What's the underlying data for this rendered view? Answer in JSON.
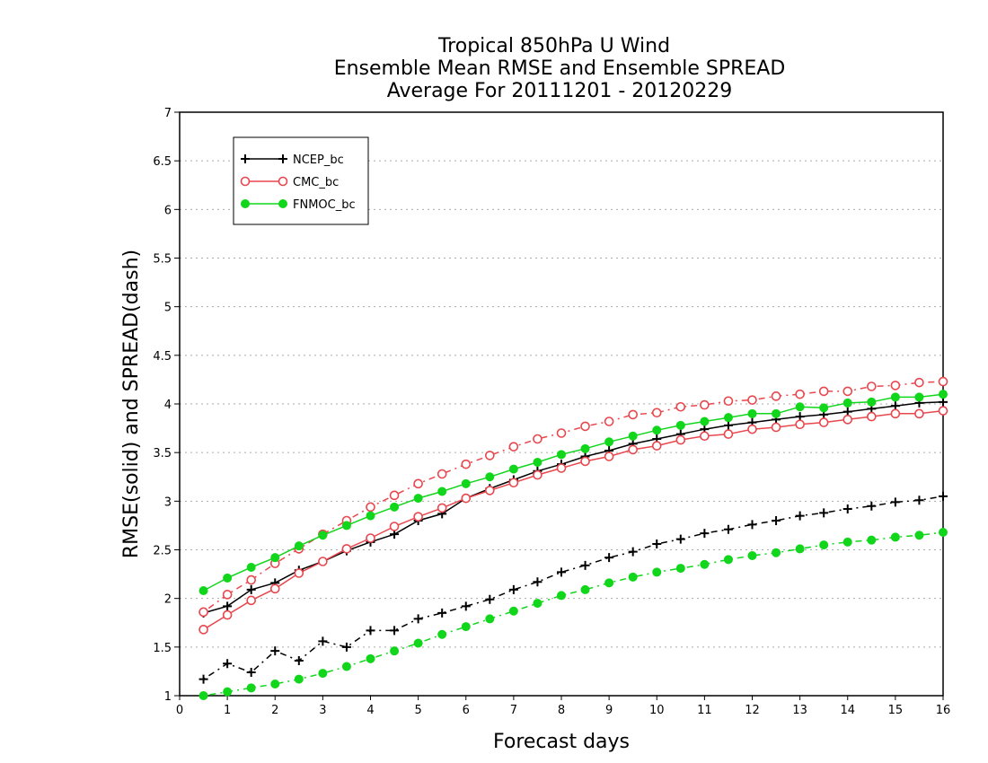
{
  "chart_data": {
    "type": "line",
    "title_lines": [
      "Tropical 850hPa U Wind",
      "Ensemble Mean RMSE and Ensemble SPREAD",
      "Average For 20111201 - 20120229"
    ],
    "xlabel": "Forecast days",
    "ylabel": "RMSE(solid) and SPREAD(dash)",
    "xlim": [
      0,
      16
    ],
    "ylim": [
      1,
      7
    ],
    "x_ticks": [
      "0",
      "1",
      "2",
      "3",
      "4",
      "5",
      "6",
      "7",
      "8",
      "9",
      "10",
      "11",
      "12",
      "13",
      "14",
      "15",
      "16"
    ],
    "y_ticks": [
      "1",
      "1.5",
      "2",
      "2.5",
      "3",
      "3.5",
      "4",
      "4.5",
      "5",
      "5.5",
      "6",
      "6.5",
      "7"
    ],
    "grid": "horizontal dotted",
    "legend_position": "top-left",
    "x": [
      0.5,
      1,
      1.5,
      2,
      2.5,
      3,
      3.5,
      4,
      4.5,
      5,
      5.5,
      6,
      6.5,
      7,
      7.5,
      8,
      8.5,
      9,
      9.5,
      10,
      10.5,
      11,
      11.5,
      12,
      12.5,
      13,
      13.5,
      14,
      14.5,
      15,
      15.5,
      16
    ],
    "series": [
      {
        "name": "NCEP_bc",
        "color": "#000000",
        "marker": "plus",
        "rmse": [
          1.85,
          1.92,
          2.09,
          2.16,
          2.29,
          2.38,
          2.49,
          2.58,
          2.66,
          2.8,
          2.87,
          3.03,
          3.13,
          3.22,
          3.31,
          3.38,
          3.46,
          3.52,
          3.59,
          3.64,
          3.69,
          3.74,
          3.78,
          3.81,
          3.84,
          3.87,
          3.89,
          3.92,
          3.95,
          3.98,
          4.01,
          4.02
        ],
        "spread": [
          1.17,
          1.33,
          1.24,
          1.46,
          1.36,
          1.56,
          1.5,
          1.67,
          1.67,
          1.79,
          1.85,
          1.92,
          1.99,
          2.09,
          2.17,
          2.27,
          2.34,
          2.42,
          2.48,
          2.56,
          2.61,
          2.67,
          2.71,
          2.76,
          2.8,
          2.85,
          2.88,
          2.92,
          2.95,
          2.99,
          3.01,
          3.05
        ]
      },
      {
        "name": "CMC_bc",
        "color": "#e8474e",
        "marker": "open-circle",
        "rmse": [
          1.68,
          1.83,
          1.98,
          2.1,
          2.26,
          2.38,
          2.51,
          2.62,
          2.74,
          2.84,
          2.93,
          3.03,
          3.11,
          3.19,
          3.27,
          3.34,
          3.41,
          3.46,
          3.53,
          3.57,
          3.63,
          3.67,
          3.69,
          3.74,
          3.76,
          3.79,
          3.81,
          3.84,
          3.87,
          3.9,
          3.9,
          3.93
        ],
        "spread": [
          1.86,
          2.04,
          2.19,
          2.36,
          2.51,
          2.66,
          2.8,
          2.94,
          3.06,
          3.18,
          3.28,
          3.38,
          3.47,
          3.56,
          3.64,
          3.7,
          3.77,
          3.82,
          3.89,
          3.91,
          3.97,
          3.99,
          4.03,
          4.04,
          4.08,
          4.1,
          4.13,
          4.13,
          4.18,
          4.19,
          4.22,
          4.23
        ]
      },
      {
        "name": "FNMOC_bc",
        "color": "#11d61b",
        "marker": "filled-circle",
        "rmse": [
          2.08,
          2.21,
          2.32,
          2.42,
          2.54,
          2.65,
          2.75,
          2.85,
          2.94,
          3.03,
          3.1,
          3.18,
          3.25,
          3.33,
          3.4,
          3.48,
          3.54,
          3.61,
          3.67,
          3.73,
          3.78,
          3.82,
          3.86,
          3.9,
          3.9,
          3.97,
          3.96,
          4.01,
          4.02,
          4.07,
          4.07,
          4.1
        ],
        "spread": [
          1.0,
          1.04,
          1.08,
          1.12,
          1.17,
          1.23,
          1.3,
          1.38,
          1.46,
          1.54,
          1.63,
          1.71,
          1.79,
          1.87,
          1.95,
          2.03,
          2.09,
          2.16,
          2.22,
          2.27,
          2.31,
          2.35,
          2.4,
          2.44,
          2.47,
          2.51,
          2.55,
          2.58,
          2.6,
          2.63,
          2.65,
          2.68
        ]
      }
    ]
  }
}
